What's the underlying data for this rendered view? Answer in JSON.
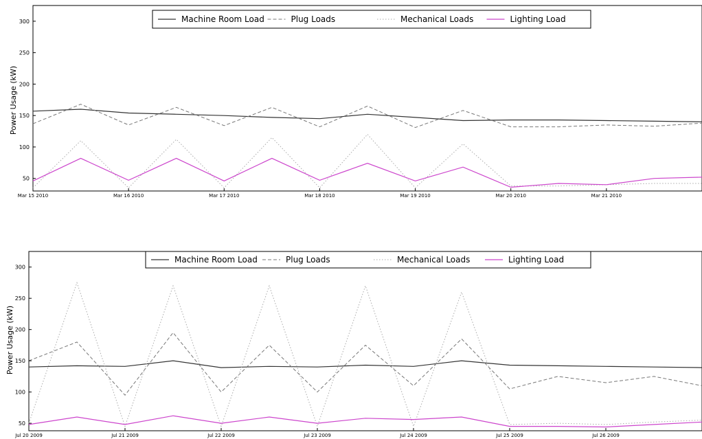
{
  "chart_data": [
    {
      "type": "line",
      "ylabel": "Power Usage (kW)",
      "ylim": [
        30,
        325
      ],
      "yticks": [
        50,
        100,
        150,
        200,
        250,
        300
      ],
      "xlim": [
        "Mar 15 2010",
        "Mar 22 2010"
      ],
      "x_tick_labels": [
        "Mar 15 2010",
        "Mar 16 2010",
        "Mar 17 2010",
        "Mar 18 2010",
        "Mar 19 2010",
        "Mar 20 2010",
        "Mar 21 2010"
      ],
      "legend_placement": "top-center",
      "grid": false,
      "x_dates": [
        "Mar 15 2010 00:00",
        "Mar 15 2010 12:00",
        "Mar 16 2010 00:00",
        "Mar 16 2010 12:00",
        "Mar 17 2010 00:00",
        "Mar 17 2010 12:00",
        "Mar 18 2010 00:00",
        "Mar 18 2010 12:00",
        "Mar 19 2010 00:00",
        "Mar 19 2010 12:00",
        "Mar 20 2010 00:00",
        "Mar 20 2010 12:00",
        "Mar 21 2010 00:00",
        "Mar 21 2010 12:00",
        "Mar 22 2010 00:00"
      ],
      "series": [
        {
          "name": "Machine Room Load",
          "style": "solid",
          "color": "#333333",
          "values": [
            157,
            160,
            154,
            152,
            150,
            147,
            145,
            152,
            147,
            142,
            143,
            143,
            142,
            141,
            140
          ]
        },
        {
          "name": "Plug Loads",
          "style": "dashed",
          "color": "#777777",
          "values": [
            137,
            168,
            135,
            163,
            134,
            163,
            132,
            165,
            131,
            158,
            132,
            132,
            135,
            133,
            138
          ]
        },
        {
          "name": "Mechanical Loads",
          "style": "dotted",
          "color": "#aaaaaa",
          "values": [
            35,
            110,
            35,
            112,
            35,
            115,
            35,
            120,
            35,
            105,
            38,
            38,
            40,
            42,
            42
          ]
        },
        {
          "name": "Lighting Load",
          "style": "solid",
          "color": "#cc44cc",
          "values": [
            46,
            82,
            47,
            82,
            46,
            82,
            47,
            74,
            46,
            68,
            36,
            42,
            40,
            50,
            52
          ]
        }
      ]
    },
    {
      "type": "line",
      "ylabel": "Power Usage (kW)",
      "ylim": [
        38,
        325
      ],
      "yticks": [
        50,
        100,
        150,
        200,
        250,
        300
      ],
      "xlim": [
        "Jul 20 2009",
        "Jul 27 2009"
      ],
      "x_tick_labels": [
        "Jul 20 2009",
        "Jul 21 2009",
        "Jul 22 2009",
        "Jul 23 2009",
        "Jul 24 2009",
        "Jul 25 2009",
        "Jul 26 2009"
      ],
      "legend_placement": "top-center",
      "grid": false,
      "x_dates": [
        "Jul 20 2009 00:00",
        "Jul 20 2009 12:00",
        "Jul 21 2009 00:00",
        "Jul 21 2009 12:00",
        "Jul 22 2009 00:00",
        "Jul 22 2009 12:00",
        "Jul 23 2009 00:00",
        "Jul 23 2009 12:00",
        "Jul 24 2009 00:00",
        "Jul 24 2009 12:00",
        "Jul 25 2009 00:00",
        "Jul 25 2009 12:00",
        "Jul 26 2009 00:00",
        "Jul 26 2009 12:00",
        "Jul 27 2009 00:00"
      ],
      "series": [
        {
          "name": "Machine Room Load",
          "style": "solid",
          "color": "#333333",
          "values": [
            140,
            142,
            141,
            150,
            139,
            141,
            140,
            143,
            141,
            150,
            143,
            142,
            141,
            140,
            139
          ]
        },
        {
          "name": "Plug Loads",
          "style": "dashed",
          "color": "#777777",
          "values": [
            150,
            180,
            95,
            195,
            100,
            175,
            100,
            175,
            110,
            185,
            105,
            125,
            115,
            125,
            110
          ]
        },
        {
          "name": "Mechanical Loads",
          "style": "dotted",
          "color": "#aaaaaa",
          "values": [
            50,
            275,
            45,
            270,
            45,
            270,
            45,
            270,
            45,
            260,
            48,
            50,
            48,
            52,
            55
          ]
        },
        {
          "name": "Lighting Load",
          "style": "solid",
          "color": "#cc44cc",
          "values": [
            48,
            60,
            48,
            62,
            50,
            60,
            50,
            58,
            56,
            60,
            45,
            45,
            44,
            48,
            52
          ]
        }
      ]
    }
  ]
}
